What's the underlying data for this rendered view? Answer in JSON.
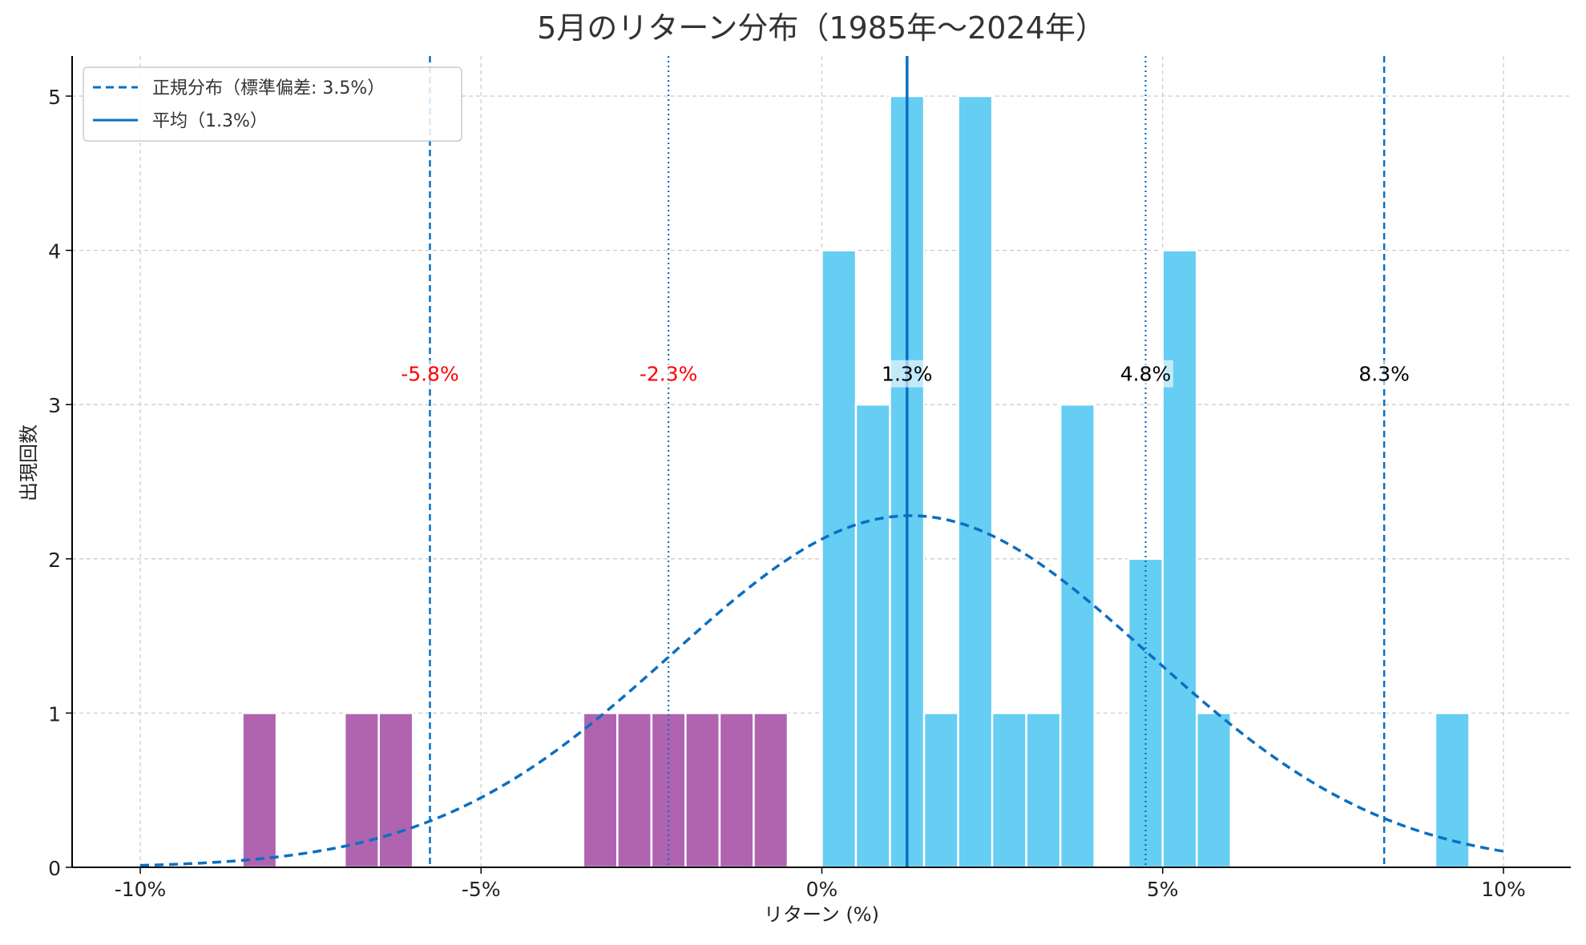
{
  "chart_data": {
    "type": "bar",
    "title": "5月のリターン分布（1985年〜2024年）",
    "xlabel": "リターン (%)",
    "ylabel": "出現回数",
    "xlim": [
      -10.5,
      11
    ],
    "ylim": [
      0,
      5.25
    ],
    "grid": true,
    "legend_position": "top-left",
    "x_ticks": [
      {
        "value": -10,
        "label": "-10%",
        "color": "#ff0000"
      },
      {
        "value": -5,
        "label": "-5%",
        "color": "#ff0000"
      },
      {
        "value": 0,
        "label": "0%",
        "color": "#000000"
      },
      {
        "value": 5,
        "label": "5%",
        "color": "#000000"
      },
      {
        "value": 10,
        "label": "10%",
        "color": "#000000"
      }
    ],
    "y_ticks": [
      {
        "value": 0,
        "label": "0"
      },
      {
        "value": 1,
        "label": "1"
      },
      {
        "value": 2,
        "label": "2"
      },
      {
        "value": 3,
        "label": "3"
      },
      {
        "value": 4,
        "label": "4"
      },
      {
        "value": 5,
        "label": "5"
      }
    ],
    "bin_width": 0.5,
    "bins": [
      {
        "start": -8.5,
        "count": 1,
        "color": "#b064b0"
      },
      {
        "start": -7.0,
        "count": 1,
        "color": "#b064b0"
      },
      {
        "start": -6.5,
        "count": 1,
        "color": "#b064b0"
      },
      {
        "start": -3.5,
        "count": 1,
        "color": "#b064b0"
      },
      {
        "start": -3.0,
        "count": 1,
        "color": "#b064b0"
      },
      {
        "start": -2.5,
        "count": 1,
        "color": "#b064b0"
      },
      {
        "start": -2.0,
        "count": 1,
        "color": "#b064b0"
      },
      {
        "start": -1.5,
        "count": 1,
        "color": "#b064b0"
      },
      {
        "start": -1.0,
        "count": 1,
        "color": "#b064b0"
      },
      {
        "start": 0.0,
        "count": 4,
        "color": "#66cdf3"
      },
      {
        "start": 0.5,
        "count": 3,
        "color": "#66cdf3"
      },
      {
        "start": 1.0,
        "count": 5,
        "color": "#66cdf3"
      },
      {
        "start": 1.5,
        "count": 1,
        "color": "#66cdf3"
      },
      {
        "start": 2.0,
        "count": 5,
        "color": "#66cdf3"
      },
      {
        "start": 2.5,
        "count": 1,
        "color": "#66cdf3"
      },
      {
        "start": 3.0,
        "count": 1,
        "color": "#66cdf3"
      },
      {
        "start": 3.5,
        "count": 3,
        "color": "#66cdf3"
      },
      {
        "start": 4.5,
        "count": 2,
        "color": "#66cdf3"
      },
      {
        "start": 5.0,
        "count": 4,
        "color": "#66cdf3"
      },
      {
        "start": 5.5,
        "count": 1,
        "color": "#66cdf3"
      },
      {
        "start": 9.0,
        "count": 1,
        "color": "#66cdf3"
      }
    ],
    "normal_curve": {
      "legend_label": "正規分布（標準偏差: 3.5%）",
      "mean": 1.3,
      "std": 3.5,
      "peak": 2.28,
      "x_range": [
        -10,
        10
      ],
      "color": "#0a6fc2"
    },
    "mean_line": {
      "legend_label": "平均（1.3%）",
      "value": 1.25,
      "color": "#0a6fc2"
    },
    "sigma_lines": [
      {
        "value": -5.75,
        "label": "-5.8%",
        "style": "dashed",
        "label_color": "#ff0000"
      },
      {
        "value": -2.25,
        "label": "-2.3%",
        "style": "dotted",
        "label_color": "#ff0000"
      },
      {
        "value": 1.25,
        "label": "1.3%",
        "style": "none",
        "label_color": "#000000"
      },
      {
        "value": 4.75,
        "label": "4.8%",
        "style": "dotted",
        "label_color": "#000000"
      },
      {
        "value": 8.25,
        "label": "8.3%",
        "style": "dashed",
        "label_color": "#000000"
      }
    ],
    "sigma_label_y": 3.2
  }
}
